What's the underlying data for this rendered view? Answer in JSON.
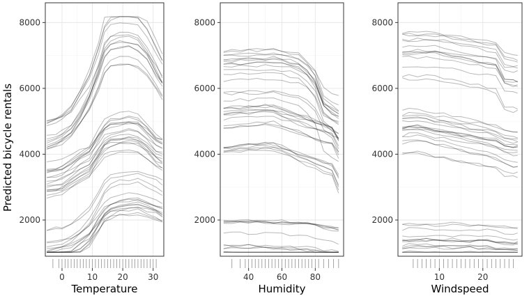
{
  "chart_data": {
    "type": "line",
    "description_kind": "ice-curves",
    "ylabel": "Predicted bicycle rentals",
    "ylim": [
      900,
      8600
    ],
    "y_ticks": [
      2000,
      4000,
      6000,
      8000
    ],
    "grid": true,
    "rug": true,
    "panels": [
      {
        "key": "temperature",
        "xlabel": "Temperature",
        "xlim": [
          -5.5,
          33.5
        ],
        "x_ticks": [
          0,
          10,
          20,
          30
        ],
        "x": [
          -5,
          -2,
          0,
          3,
          6,
          9,
          12,
          14,
          16,
          19,
          22,
          25,
          28,
          31,
          33
        ],
        "series_groups": [
          {
            "name": "low",
            "base": [
              1100,
              1150,
              1200,
              1300,
              1500,
              1750,
              2200,
              2500,
              2650,
              2750,
              2780,
              2800,
              2700,
              2600,
              2500
            ],
            "count": 16,
            "spread": 1300
          },
          {
            "name": "mid",
            "base": [
              3200,
              3250,
              3300,
              3500,
              3700,
              3850,
              4300,
              4600,
              4700,
              4750,
              4800,
              4750,
              4500,
              4200,
              4100
            ],
            "count": 18,
            "spread": 1200
          },
          {
            "name": "high",
            "base": [
              4500,
              4600,
              4700,
              4900,
              5300,
              5800,
              6500,
              7100,
              7300,
              7400,
              7400,
              7300,
              7000,
              6500,
              6200
            ],
            "count": 14,
            "spread": 1000
          }
        ],
        "rug": [
          -3,
          -1,
          0,
          1,
          2,
          3,
          4,
          5,
          6,
          7,
          8,
          9,
          10,
          11,
          12,
          13,
          14,
          15,
          16,
          17,
          18,
          19,
          20,
          21,
          22,
          23,
          24,
          25,
          26,
          27,
          28,
          29,
          30,
          31
        ]
      },
      {
        "key": "humidity",
        "xlabel": "Humidity",
        "xlim": [
          23,
          97
        ],
        "x_ticks": [
          40,
          60,
          80
        ],
        "x": [
          25,
          30,
          35,
          40,
          45,
          50,
          55,
          60,
          65,
          70,
          75,
          80,
          85,
          90,
          94
        ],
        "series_groups": [
          {
            "name": "low",
            "base": [
              1300,
              1300,
              1300,
              1300,
              1300,
              1290,
              1280,
              1270,
              1260,
              1250,
              1240,
              1200,
              1150,
              1100,
              1050
            ],
            "count": 14,
            "spread": 1500
          },
          {
            "name": "mid",
            "base": [
              4700,
              4720,
              4740,
              4760,
              4780,
              4800,
              4780,
              4700,
              4600,
              4500,
              4400,
              4300,
              4200,
              4100,
              3700
            ],
            "count": 18,
            "spread": 1500
          },
          {
            "name": "high",
            "base": [
              6300,
              6300,
              6320,
              6320,
              6330,
              6330,
              6340,
              6300,
              6250,
              6200,
              6000,
              5700,
              5000,
              4800,
              4700
            ],
            "count": 16,
            "spread": 1700
          }
        ],
        "rug": [
          30,
          35,
          38,
          40,
          42,
          44,
          46,
          48,
          50,
          52,
          54,
          56,
          58,
          60,
          62,
          64,
          66,
          68,
          70,
          72,
          74,
          76,
          78,
          80,
          82,
          85,
          88,
          91,
          94
        ]
      },
      {
        "key": "windspeed",
        "xlabel": "Windspeed",
        "xlim": [
          0.5,
          29
        ],
        "x_ticks": [
          10,
          20
        ],
        "x": [
          1.5,
          3,
          5,
          7,
          9,
          11,
          13,
          15,
          17,
          19,
          21,
          23,
          25,
          27,
          28
        ],
        "series_groups": [
          {
            "name": "low",
            "base": [
              1200,
              1210,
              1210,
              1210,
              1200,
              1200,
              1200,
              1200,
              1190,
              1190,
              1180,
              1150,
              1100,
              1100,
              1100
            ],
            "count": 16,
            "spread": 1500
          },
          {
            "name": "mid",
            "base": [
              4700,
              4750,
              4750,
              4700,
              4650,
              4600,
              4550,
              4500,
              4450,
              4400,
              4350,
              4300,
              4150,
              4100,
              4100
            ],
            "count": 18,
            "spread": 1500
          },
          {
            "name": "high",
            "base": [
              7000,
              7000,
              7000,
              7000,
              7000,
              6950,
              6900,
              6850,
              6800,
              6750,
              6700,
              6650,
              6200,
              6150,
              6150
            ],
            "count": 14,
            "spread": 1500
          }
        ],
        "rug": [
          4,
          5,
          6,
          7,
          8,
          9,
          10,
          11,
          12,
          13,
          14,
          15,
          16,
          17,
          18,
          19,
          20,
          21,
          22,
          23,
          24,
          25,
          26,
          27
        ]
      }
    ]
  }
}
